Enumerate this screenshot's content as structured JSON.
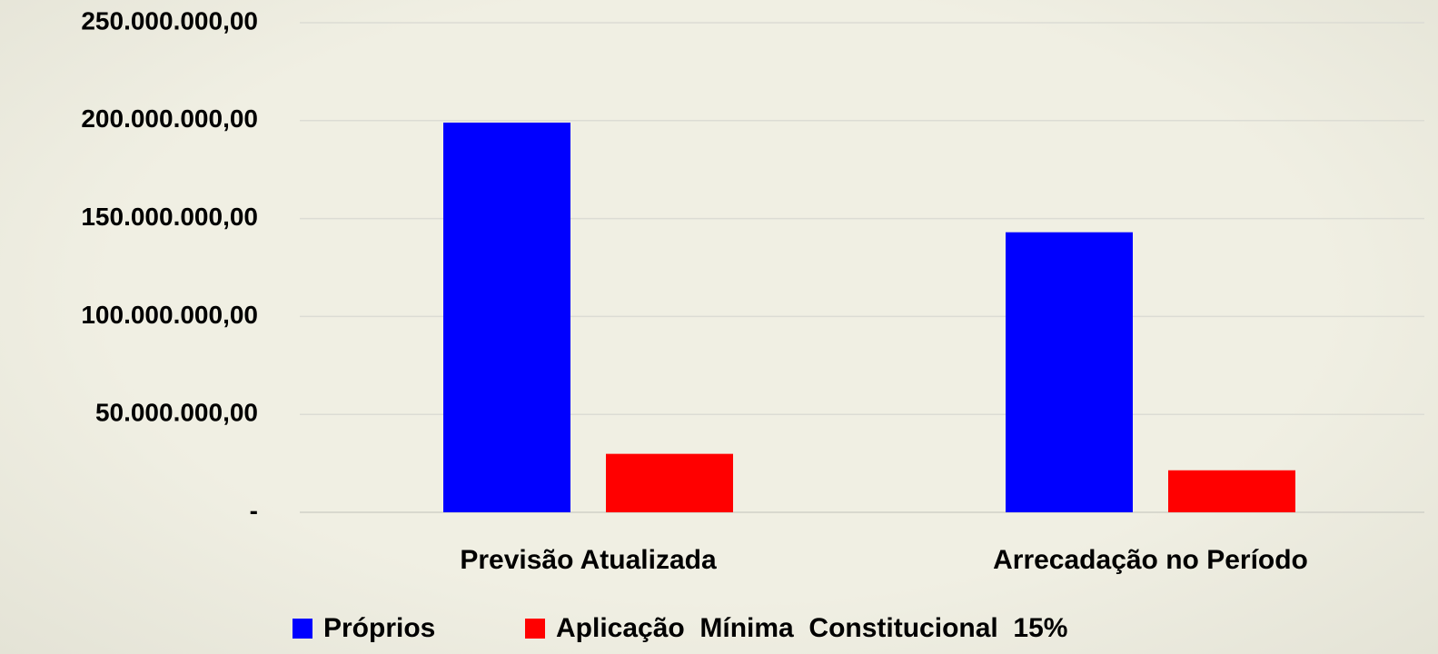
{
  "chart_data": {
    "type": "bar",
    "categories": [
      "Previsão Atualizada",
      "Arrecadação no Período"
    ],
    "series": [
      {
        "name": "Próprios",
        "color": "#0000ff",
        "values": [
          199000000,
          143000000
        ]
      },
      {
        "name": "Aplicação  Mínima  Constitucional  15%",
        "color": "#ff0000",
        "values": [
          29850000,
          21450000
        ]
      }
    ],
    "ylim": [
      0,
      250000000
    ],
    "yticks": [
      {
        "value": 0,
        "label": "-"
      },
      {
        "value": 50000000,
        "label": "50.000.000,00"
      },
      {
        "value": 100000000,
        "label": "100.000.000,00"
      },
      {
        "value": 150000000,
        "label": "150.000.000,00"
      },
      {
        "value": 200000000,
        "label": "200.000.000,00"
      },
      {
        "value": 250000000,
        "label": "250.000.000,00"
      }
    ],
    "grid": true,
    "legend": "bottom"
  }
}
